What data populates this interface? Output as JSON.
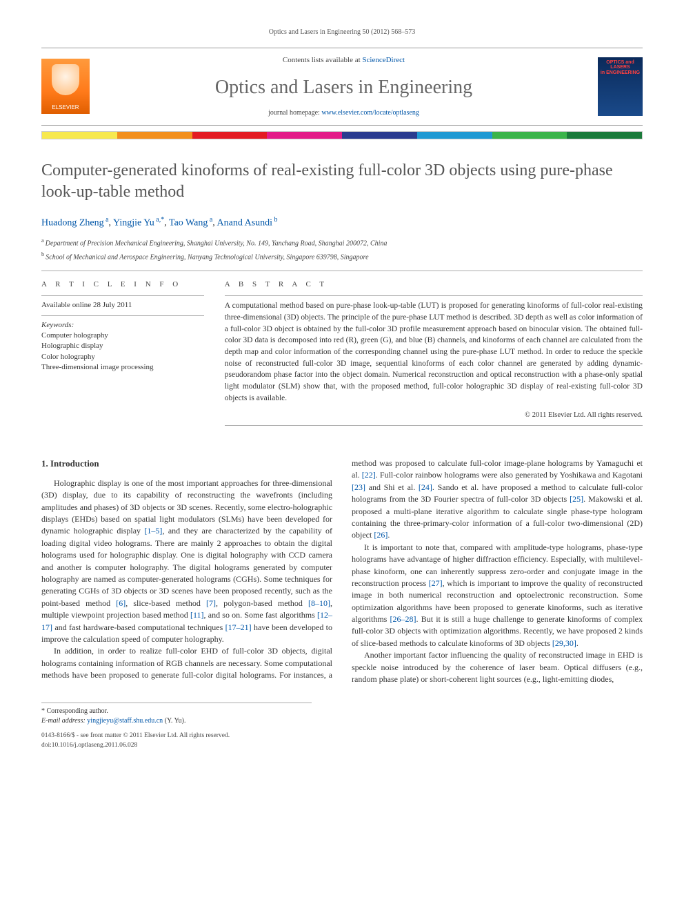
{
  "runningHead": "Optics and Lasers in Engineering 50 (2012) 568–573",
  "masthead": {
    "publisher": "ELSEVIER",
    "contentsPrefix": "Contents lists available at ",
    "contentsLink": "ScienceDirect",
    "journal": "Optics and Lasers in Engineering",
    "homepagePrefix": "journal homepage: ",
    "homepageUrl": "www.elsevier.com/locate/optlaseng",
    "coverLine1": "OPTICS and LASERS",
    "coverLine2": "in ENGINEERING"
  },
  "colorBar": [
    "#f7e94e",
    "#f28f1c",
    "#e31b23",
    "#e31b88",
    "#2a3b8f",
    "#1f99d3",
    "#3bb44a",
    "#1a7a3a"
  ],
  "title": "Computer-generated kinoforms of real-existing full-color 3D objects using pure-phase look-up-table method",
  "authors": [
    {
      "name": "Huadong Zheng",
      "sup": "a"
    },
    {
      "name": "Yingjie Yu",
      "sup": "a,*",
      "corr": true
    },
    {
      "name": "Tao Wang",
      "sup": "a"
    },
    {
      "name": "Anand Asundi",
      "sup": "b"
    }
  ],
  "affiliations": [
    {
      "sup": "a",
      "text": "Department of Precision Mechanical Engineering, Shanghai University, No. 149, Yanchang Road, Shanghai 200072, China"
    },
    {
      "sup": "b",
      "text": "School of Mechanical and Aerospace Engineering, Nanyang Technological University, Singapore 639798, Singapore"
    }
  ],
  "articleInfo": {
    "heading": "A R T I C L E   I N F O",
    "available": "Available online 28 July 2011",
    "kwHead": "Keywords:",
    "keywords": [
      "Computer holography",
      "Holographic display",
      "Color holography",
      "Three-dimensional image processing"
    ]
  },
  "abstract": {
    "heading": "A B S T R A C T",
    "text": "A computational method based on pure-phase look-up-table (LUT) is proposed for generating kinoforms of full-color real-existing three-dimensional (3D) objects. The principle of the pure-phase LUT method is described. 3D depth as well as color information of a full-color 3D object is obtained by the full-color 3D profile measurement approach based on binocular vision. The obtained full-color 3D data is decomposed into red (R), green (G), and blue (B) channels, and kinoforms of each channel are calculated from the depth map and color information of the corresponding channel using the pure-phase LUT method. In order to reduce the speckle noise of reconstructed full-color 3D image, sequential kinoforms of each color channel are generated by adding dynamic-pseudorandom phase factor into the object domain. Numerical reconstruction and optical reconstruction with a phase-only spatial light modulator (SLM) show that, with the proposed method, full-color holographic 3D display of real-existing full-color 3D objects is available.",
    "copyright": "© 2011 Elsevier Ltd. All rights reserved."
  },
  "sections": {
    "introHead": "1.  Introduction",
    "p1a": "Holographic display is one of the most important approaches for three-dimensional (3D) display, due to its capability of reconstructing the wavefronts (including amplitudes and phases) of 3D objects or 3D scenes. Recently, some electro-holographic displays (EHDs) based on spatial light modulators (SLMs) have been developed for dynamic holographic display ",
    "r1_5": "[1–5]",
    "p1b": ", and they are characterized by the capability of loading digital video holograms. There are mainly 2 approaches to obtain the digital holograms used for holographic display. One is digital holography with CCD camera and another is computer holography. The digital holograms generated by computer holography are named as computer-generated holograms (CGHs). Some techniques for generating CGHs of 3D objects or 3D scenes have been proposed recently, such as the point-based method ",
    "r6": "[6]",
    "p1c": ", slice-based method ",
    "r7": "[7]",
    "p1d": ", polygon-based method ",
    "r8_10": "[8–10]",
    "p1e": ", multiple viewpoint projection based method ",
    "r11": "[11]",
    "p1f": ", and so on. Some fast algorithms ",
    "r12_17": "[12–17]",
    "p1g": " and fast hardware-based computational techniques ",
    "r17_21": "[17–21]",
    "p1h": " have been developed to improve the calculation speed of computer holography.",
    "p2": "In addition, in order to realize full-color EHD of full-color 3D objects, digital holograms containing information of RGB channels ",
    "p3a": "are necessary. Some computational methods have been proposed to generate full-color digital holograms. For instances, a method was proposed to calculate full-color image-plane holograms by Yamaguchi et al. ",
    "r22": "[22]",
    "p3b": ". Full-color rainbow holograms were also generated by Yoshikawa and Kagotani ",
    "r23": "[23]",
    "p3c": " and Shi et al. ",
    "r24": "[24]",
    "p3d": ". Sando et al. have proposed a method to calculate full-color holograms from the 3D Fourier spectra of full-color 3D objects ",
    "r25": "[25]",
    "p3e": ". Makowski et al. proposed a multi-plane iterative algorithm to calculate single phase-type hologram containing the three-primary-color information of a full-color two-dimensional (2D) object ",
    "r26": "[26]",
    "p3f": ".",
    "p4a": "It is important to note that, compared with amplitude-type holograms, phase-type holograms have advantage of higher diffraction efficiency. Especially, with multilevel-phase kinoform, one can inherently suppress zero-order and conjugate image in the reconstruction process ",
    "r27": "[27]",
    "p4b": ", which is important to improve the quality of reconstructed image in both numerical reconstruction and optoelectronic reconstruction. Some optimization algorithms have been proposed to generate kinoforms, such as iterative algorithms ",
    "r26_28": "[26–28]",
    "p4c": ". But it is still a huge challenge to generate kinoforms of complex full-color 3D objects with optimization algorithms. Recently, we have proposed 2 kinds of slice-based methods to calculate kinoforms of 3D objects ",
    "r29_30": "[29,30]",
    "p4d": ".",
    "p5": "Another important factor influencing the quality of reconstructed image in EHD is speckle noise introduced by the coherence of laser beam. Optical diffusers (e.g., random phase plate) or short-coherent light sources (e.g., light-emitting diodes,"
  },
  "footnotes": {
    "corr": "* Corresponding author.",
    "emailLabel": "E-mail address: ",
    "email": "yingjieyu@staff.shu.edu.cn",
    "emailName": " (Y. Yu).",
    "issn": "0143-8166/$ - see front matter © 2011 Elsevier Ltd. All rights reserved.",
    "doi": "doi:10.1016/j.optlaseng.2011.06.028"
  }
}
